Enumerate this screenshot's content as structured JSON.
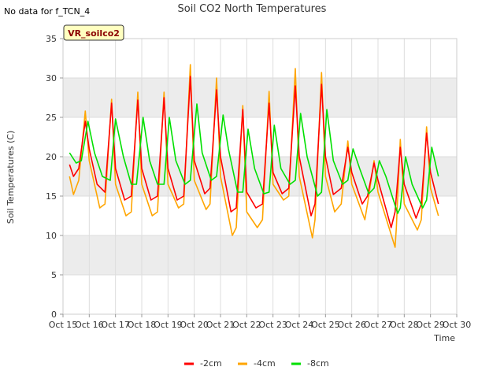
{
  "note": "No data for f_TCN_4",
  "badge": "VR_soilco2",
  "colors": {
    "band": "#ececec",
    "grid": "#dddddd",
    "axis": "#999999",
    "badge_bg": "#ffffc0"
  },
  "chart_data": {
    "type": "line",
    "title": "Soil CO2 North Temperatures",
    "xlabel": "Time",
    "ylabel": "Soil Temperatures (C)",
    "ylim": [
      0,
      35
    ],
    "yticks": [
      0,
      5,
      10,
      15,
      20,
      25,
      30,
      35
    ],
    "xlim": [
      15,
      30
    ],
    "xticks": [
      15,
      16,
      17,
      18,
      19,
      20,
      21,
      22,
      23,
      24,
      25,
      26,
      27,
      28,
      29,
      30
    ],
    "xtick_labels": [
      "Oct 15",
      "Oct 16",
      "Oct 17",
      "Oct 18",
      "Oct 19",
      "Oct 20",
      "Oct 21",
      "Oct 22",
      "Oct 23",
      "Oct 24",
      "Oct 25",
      "Oct 26",
      "Oct 27",
      "Oct 28",
      "Oct 29",
      "Oct 30"
    ],
    "grid": true,
    "legend": "bottom",
    "series": [
      {
        "name": "-2cm",
        "color": "#ff0000",
        "x": [
          15.25,
          15.4,
          15.6,
          15.85,
          16.0,
          16.3,
          16.6,
          16.85,
          17.0,
          17.35,
          17.6,
          17.85,
          18.0,
          18.35,
          18.6,
          18.85,
          19.0,
          19.35,
          19.6,
          19.85,
          20.0,
          20.4,
          20.6,
          20.85,
          21.0,
          21.4,
          21.6,
          21.85,
          22.0,
          22.35,
          22.6,
          22.85,
          23.0,
          23.35,
          23.6,
          23.85,
          24.0,
          24.45,
          24.6,
          24.85,
          25.0,
          25.3,
          25.6,
          25.85,
          26.0,
          26.4,
          26.6,
          26.85,
          27.0,
          27.5,
          27.65,
          27.85,
          28.0,
          28.45,
          28.65,
          28.85,
          29.0,
          29.3
        ],
        "y": [
          19,
          17.5,
          18.5,
          24.5,
          21,
          16.5,
          15.5,
          26.8,
          18.5,
          14.5,
          15,
          27.2,
          18.5,
          14.5,
          15,
          27.5,
          18.5,
          14.5,
          15,
          30.2,
          19.5,
          15.3,
          16,
          28.5,
          20,
          13,
          13.5,
          26,
          15.5,
          13.5,
          14,
          26.8,
          18,
          15.3,
          16,
          29,
          20,
          12.5,
          14,
          29.2,
          20,
          15.2,
          16,
          21.2,
          18,
          14,
          15,
          19.2,
          17,
          11,
          13,
          21.2,
          16.5,
          12.2,
          14,
          23,
          18,
          14
        ]
      },
      {
        "name": "-4cm",
        "color": "#ffa500",
        "x": [
          15.25,
          15.4,
          15.6,
          15.85,
          16.0,
          16.4,
          16.6,
          16.85,
          17.0,
          17.4,
          17.6,
          17.85,
          18.0,
          18.4,
          18.6,
          18.85,
          19.0,
          19.4,
          19.6,
          19.85,
          20.0,
          20.45,
          20.6,
          20.85,
          21.0,
          21.45,
          21.6,
          21.85,
          22.0,
          22.4,
          22.6,
          22.85,
          23.0,
          23.4,
          23.6,
          23.85,
          24.0,
          24.5,
          24.6,
          24.85,
          25.0,
          25.35,
          25.6,
          25.85,
          26.0,
          26.5,
          26.6,
          26.85,
          27.0,
          27.65,
          27.7,
          27.85,
          28.0,
          28.5,
          28.65,
          28.85,
          29.0,
          29.3
        ],
        "y": [
          17.5,
          15.2,
          17,
          25.8,
          19.5,
          13.5,
          14,
          27.3,
          16.5,
          12.5,
          13,
          28.2,
          16.5,
          12.5,
          13,
          28.2,
          16.5,
          13.5,
          14,
          31.7,
          17,
          13.3,
          14,
          30,
          17.5,
          10,
          11,
          26.5,
          13,
          11,
          12,
          28.3,
          16.5,
          14.5,
          15,
          31.2,
          17.5,
          9.7,
          12,
          30.7,
          17.5,
          13,
          14,
          22,
          16.5,
          12,
          14,
          19.5,
          15.5,
          8.5,
          11,
          22.2,
          14,
          10.7,
          12,
          23.8,
          16,
          12.5
        ]
      },
      {
        "name": "-8cm",
        "color": "#00e000",
        "x": [
          15.25,
          15.5,
          15.7,
          15.95,
          16.2,
          16.5,
          16.8,
          17.0,
          17.3,
          17.6,
          17.8,
          18.05,
          18.3,
          18.6,
          18.85,
          19.05,
          19.3,
          19.65,
          19.85,
          20.1,
          20.3,
          20.65,
          20.85,
          21.1,
          21.3,
          21.65,
          21.85,
          22.05,
          22.3,
          22.65,
          22.85,
          23.05,
          23.3,
          23.65,
          23.85,
          24.05,
          24.3,
          24.7,
          24.85,
          25.05,
          25.3,
          25.65,
          25.85,
          26.05,
          26.3,
          26.65,
          26.85,
          27.05,
          27.3,
          27.75,
          27.85,
          28.05,
          28.3,
          28.7,
          28.85,
          29.05,
          29.3
        ],
        "y": [
          20.5,
          19.2,
          19.5,
          24.5,
          20.5,
          17.5,
          17,
          24.8,
          20,
          16.5,
          16.5,
          25,
          19.5,
          16.5,
          16.5,
          25,
          19.5,
          16.5,
          17,
          26.7,
          20.5,
          17,
          17.5,
          25.3,
          21,
          15.5,
          15.5,
          23.5,
          18.5,
          15.3,
          15.5,
          24,
          18.5,
          16.5,
          17,
          25.5,
          20,
          15,
          15.5,
          26,
          19.5,
          16.5,
          17,
          21,
          18.5,
          15.3,
          16,
          19.5,
          17.5,
          12.8,
          13.5,
          20,
          16.5,
          13.5,
          14.5,
          21.2,
          17.5
        ]
      }
    ]
  }
}
